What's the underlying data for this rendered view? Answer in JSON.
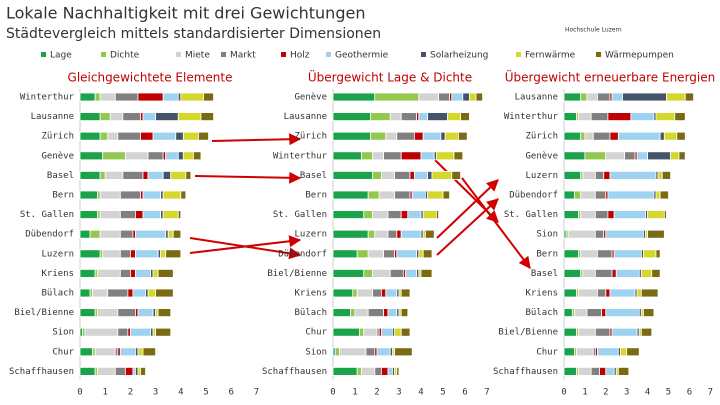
{
  "title": "Lokale Nachhaltigkeit mit drei Gewichtungen",
  "subtitle": "Städtevergleich mittels standardisierter Dimensionen",
  "logo": "Hochschule Luzern",
  "chart_data": [
    {
      "type": "bar",
      "orientation": "horizontal",
      "stacked": true,
      "title": "Gleichgewichtete Elemente",
      "categories": [
        "Winterthur",
        "Lausanne",
        "Zürich",
        "Genève",
        "Basel",
        "Bern",
        "St. Gallen",
        "Dübendorf",
        "Luzern",
        "Kriens",
        "Bülach",
        "Biel/Bienne",
        "Sion",
        "Chur",
        "Schaffhausen"
      ],
      "xlim": [
        0,
        7
      ],
      "xticks": [
        0,
        1,
        2,
        3,
        4,
        5,
        6,
        7
      ],
      "series": [
        {
          "name": "Lage",
          "color": "#1aa34a",
          "values": [
            0.6,
            0.8,
            0.8,
            0.9,
            0.8,
            0.7,
            0.7,
            0.4,
            0.8,
            0.6,
            0.4,
            0.6,
            0.1,
            0.5,
            0.6
          ]
        },
        {
          "name": "Dichte",
          "color": "#92c84e",
          "values": [
            0.2,
            0.4,
            0.3,
            0.9,
            0.2,
            0.1,
            0.1,
            0.4,
            0.1,
            0.1,
            0.1,
            0.1,
            0.1,
            0.1,
            0.1
          ]
        },
        {
          "name": "Miete",
          "color": "#d3d3d3",
          "values": [
            0.6,
            0.5,
            0.4,
            0.9,
            0.7,
            0.8,
            0.8,
            0.8,
            0.7,
            0.9,
            0.6,
            0.8,
            1.3,
            0.8,
            0.7
          ]
        },
        {
          "name": "Markt",
          "color": "#808080",
          "values": [
            0.9,
            0.7,
            0.9,
            0.6,
            0.8,
            0.8,
            0.6,
            0.5,
            0.4,
            0.4,
            0.8,
            0.7,
            0.4,
            0.1,
            0.4
          ]
        },
        {
          "name": "Holz",
          "color": "#c00000",
          "values": [
            1.0,
            0.1,
            0.5,
            0.1,
            0.2,
            0.1,
            0.3,
            0.1,
            0.2,
            0.2,
            0.2,
            0.1,
            0.1,
            0.1,
            0.3
          ]
        },
        {
          "name": "Geothermie",
          "color": "#9dd3f0",
          "values": [
            0.6,
            0.5,
            0.9,
            0.5,
            0.6,
            0.7,
            0.7,
            1.2,
            0.9,
            0.6,
            0.5,
            0.6,
            0.8,
            0.6,
            0.1
          ]
        },
        {
          "name": "Solarheizung",
          "color": "#44546a",
          "values": [
            0.1,
            0.9,
            0.3,
            0.2,
            0.3,
            0.1,
            0.1,
            0.1,
            0.1,
            0.1,
            0.1,
            0.1,
            0.1,
            0.1,
            0.1
          ]
        },
        {
          "name": "Fernwärme",
          "color": "#d4d82a",
          "values": [
            0.9,
            0.9,
            0.6,
            0.4,
            0.6,
            0.7,
            0.6,
            0.2,
            0.2,
            0.2,
            0.3,
            0.1,
            0.1,
            0.2,
            0.1
          ]
        },
        {
          "name": "Wärmepumpen",
          "color": "#7a6a14",
          "values": [
            0.4,
            0.5,
            0.4,
            0.3,
            0.2,
            0.2,
            0.1,
            0.3,
            0.6,
            0.6,
            0.7,
            0.5,
            0.6,
            0.5,
            0.2
          ]
        }
      ]
    },
    {
      "type": "bar",
      "orientation": "horizontal",
      "stacked": true,
      "title": "Übergewicht Lage & Dichte",
      "categories": [
        "Genève",
        "Lausanne",
        "Zürich",
        "Winterthur",
        "Basel",
        "Bern",
        "St. Gallen",
        "Luzern",
        "Dübendorf",
        "Biel/Bienne",
        "Kriens",
        "Bülach",
        "Chur",
        "Sion",
        "Schaffhausen"
      ],
      "xlim": [
        0,
        7
      ],
      "xticks": [
        0,
        1,
        2,
        3,
        4,
        5,
        6,
        7
      ],
      "series": [
        {
          "color": "#1aa34a",
          "values": [
            1.9,
            1.7,
            1.7,
            1.3,
            1.8,
            1.6,
            1.4,
            1.6,
            1.1,
            1.4,
            0.9,
            0.8,
            1.2,
            0.1,
            1.1
          ]
        },
        {
          "color": "#92c84e",
          "values": [
            2.0,
            0.9,
            0.7,
            0.5,
            0.4,
            0.5,
            0.4,
            0.3,
            0.5,
            0.4,
            0.2,
            0.2,
            0.2,
            0.2,
            0.2
          ]
        },
        {
          "color": "#d3d3d3",
          "values": [
            0.9,
            0.5,
            0.5,
            0.5,
            0.6,
            0.7,
            0.7,
            0.6,
            0.7,
            0.8,
            0.7,
            0.6,
            0.6,
            1.2,
            0.6
          ]
        },
        {
          "color": "#808080",
          "values": [
            0.5,
            0.7,
            0.8,
            0.8,
            0.7,
            0.7,
            0.6,
            0.4,
            0.5,
            0.6,
            0.4,
            0.7,
            0.1,
            0.4,
            0.3
          ]
        },
        {
          "color": "#c00000",
          "values": [
            0.1,
            0.1,
            0.4,
            0.9,
            0.2,
            0.1,
            0.3,
            0.2,
            0.1,
            0.1,
            0.2,
            0.2,
            0.1,
            0.1,
            0.3
          ]
        },
        {
          "color": "#9dd3f0",
          "values": [
            0.5,
            0.4,
            0.8,
            0.6,
            0.6,
            0.6,
            0.6,
            0.9,
            0.9,
            0.5,
            0.5,
            0.4,
            0.5,
            0.6,
            0.2
          ]
        },
        {
          "color": "#44546a",
          "values": [
            0.3,
            0.9,
            0.2,
            0.1,
            0.2,
            0.1,
            0.1,
            0.1,
            0.1,
            0.1,
            0.1,
            0.1,
            0.1,
            0.1,
            0.1
          ]
        },
        {
          "color": "#d4d82a",
          "values": [
            0.3,
            0.6,
            0.6,
            0.8,
            0.9,
            0.7,
            0.6,
            0.1,
            0.2,
            0.1,
            0.1,
            0.1,
            0.3,
            0.1,
            0.1
          ]
        },
        {
          "color": "#7a6a14",
          "values": [
            0.3,
            0.4,
            0.4,
            0.4,
            0.4,
            0.3,
            0.1,
            0.4,
            0.4,
            0.5,
            0.4,
            0.3,
            0.4,
            0.8,
            0.1
          ]
        }
      ]
    },
    {
      "type": "bar",
      "orientation": "horizontal",
      "stacked": true,
      "title": "Übergewicht erneuerbare Energien",
      "categories": [
        "Lausanne",
        "Winterthur",
        "Zürich",
        "Genève",
        "Luzern",
        "Dübendorf",
        "St. Gallen",
        "Sion",
        "Bern",
        "Basel",
        "Kriens",
        "Bülach",
        "Biel/Bienne",
        "Chur",
        "Schaffhausen"
      ],
      "xlim": [
        0,
        7
      ],
      "xticks": [
        0,
        1,
        2,
        3,
        4,
        5,
        6,
        7
      ],
      "series": [
        {
          "color": "#1aa34a",
          "values": [
            0.8,
            0.6,
            0.8,
            1.0,
            0.8,
            0.5,
            0.7,
            0.1,
            0.7,
            0.8,
            0.6,
            0.4,
            0.6,
            0.5,
            0.6
          ]
        },
        {
          "color": "#92c84e",
          "values": [
            0.3,
            0.1,
            0.2,
            1.0,
            0.1,
            0.3,
            0.1,
            0.1,
            0.1,
            0.1,
            0.1,
            0.1,
            0.1,
            0.1,
            0.1
          ]
        },
        {
          "color": "#d3d3d3",
          "values": [
            0.5,
            0.6,
            0.4,
            0.9,
            0.6,
            0.7,
            0.7,
            1.3,
            0.8,
            0.6,
            0.9,
            0.6,
            0.8,
            0.8,
            0.6
          ]
        },
        {
          "color": "#808080",
          "values": [
            0.6,
            0.8,
            0.8,
            0.5,
            0.4,
            0.5,
            0.6,
            0.4,
            0.7,
            0.8,
            0.4,
            0.7,
            0.7,
            0.1,
            0.4
          ]
        },
        {
          "color": "#c00000",
          "values": [
            0.1,
            1.1,
            0.4,
            0.1,
            0.3,
            0.1,
            0.3,
            0.1,
            0.1,
            0.2,
            0.2,
            0.2,
            0.1,
            0.1,
            0.3
          ]
        },
        {
          "color": "#9dd3f0",
          "values": [
            0.5,
            1.1,
            2.0,
            0.5,
            2.2,
            2.2,
            1.5,
            1.8,
            1.3,
            1.1,
            1.2,
            1.6,
            1.2,
            1.0,
            0.4
          ]
        },
        {
          "color": "#44546a",
          "values": [
            2.1,
            0.1,
            0.2,
            1.1,
            0.1,
            0.1,
            0.1,
            0.1,
            0.1,
            0.1,
            0.1,
            0.1,
            0.1,
            0.1,
            0.1
          ]
        },
        {
          "color": "#d4d82a",
          "values": [
            0.9,
            0.9,
            0.6,
            0.4,
            0.2,
            0.2,
            0.8,
            0.1,
            0.6,
            0.5,
            0.2,
            0.1,
            0.1,
            0.3,
            0.1
          ]
        },
        {
          "color": "#7a6a14",
          "values": [
            0.4,
            0.5,
            0.4,
            0.3,
            0.4,
            0.4,
            0.1,
            0.8,
            0.2,
            0.4,
            0.8,
            0.5,
            0.5,
            0.6,
            0.5
          ]
        }
      ]
    }
  ]
}
